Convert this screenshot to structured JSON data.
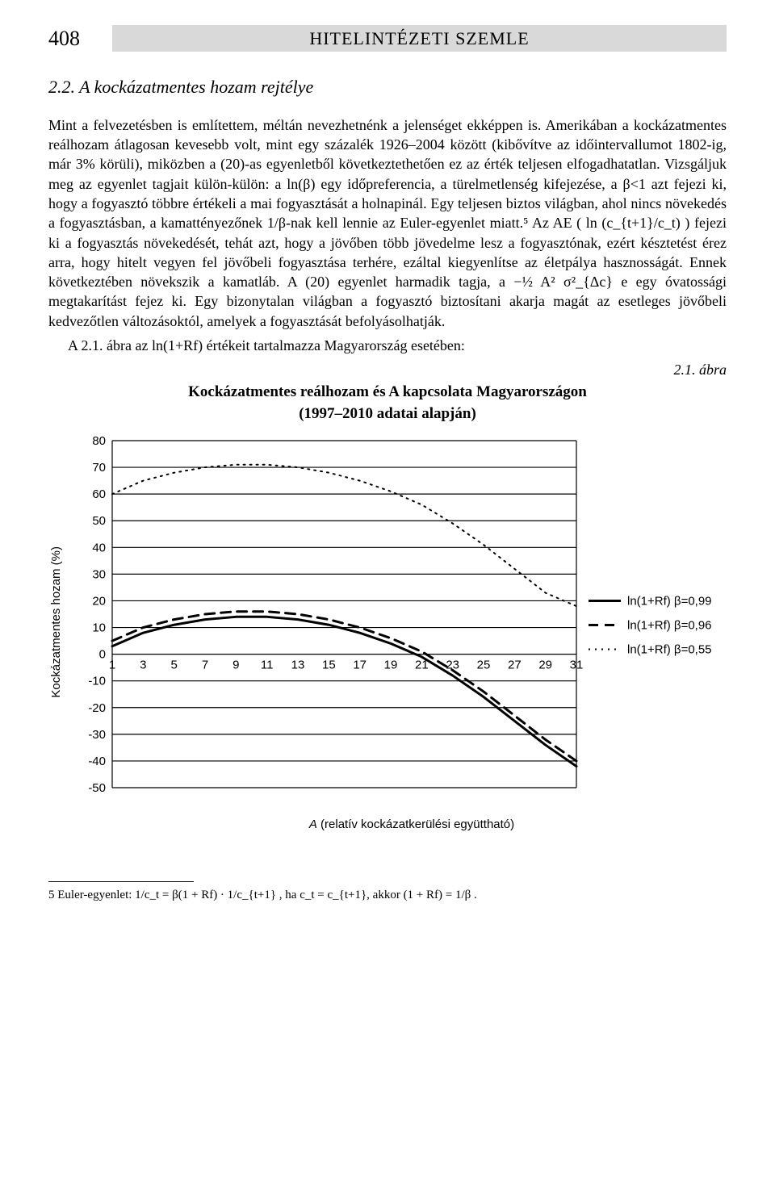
{
  "page_number": "408",
  "journal_title": "HITELINTÉZETI SZEMLE",
  "section_heading": "2.2. A kockázatmentes hozam rejtélye",
  "paragraph": "Mint a felvezetésben is említettem, méltán nevezhetnénk a jelenséget ekképpen is. Amerikában a kockázatmentes reálhozam átlagosan kevesebb volt, mint egy százalék 1926–2004 között (kibővítve az időintervallumot 1802-ig, már 3% körüli), miközben a (20)-as egyenletből következtethetően ez az érték teljesen elfogadhatatlan. Vizsgáljuk meg az egyenlet tagjait külön-külön: a ln(β) egy időpreferencia, a türelmetlenség kifejezése, a β<1 azt fejezi ki, hogy a fogyasztó többre értékeli a mai fogyasztását a holnapinál. Egy teljesen biztos világban, ahol nincs növekedés a fogyasztásban, a kamattényezőnek 1/β-nak kell lennie az Euler-egyenlet miatt.⁵ Az AE ( ln (c_{t+1}/c_t) ) fejezi ki a fogyasztás növekedését, tehát azt, hogy a jövőben több jövedelme lesz a fogyasztónak, ezért késztetést érez arra, hogy hitelt vegyen fel jövőbeli fogyasztása terhére, ezáltal kiegyenlítse az életpálya hasznosságát. Ennek következtében növekszik a kamatláb. A (20) egyenlet harmadik tagja, a −½ A² σ²_{Δc} e egy óvatossági megtakarítást fejez ki. Egy bizonytalan világban a fogyasztó biztosítani akarja magát az esetleges jövőbeli kedvezőtlen változásoktól, amelyek a fogyasztását befolyásolhatják.",
  "indent_line": "A 2.1. ábra az ln(1+Rf) értékeit tartalmazza Magyarország esetében:",
  "fig_label": "2.1. ábra",
  "fig_title": "Kockázatmentes reálhozam és A kapcsolata Magyarországon",
  "fig_subtitle": "(1997–2010 adatai alapján)",
  "y_axis_label": "Kockázatmentes hozam (%)",
  "x_axis_label_italic": "A",
  "x_axis_label_rest": " (relatív kockázatkerülési együttható)",
  "footnote": "5 Euler-egyenlet:  1/c_t = β(1 + Rf) · 1/c_{t+1} , ha c_t = c_{t+1}, akkor (1 + Rf) = 1/β .",
  "chart": {
    "type": "line",
    "background_color": "#ffffff",
    "grid_color": "#000000",
    "text_color": "#000000",
    "font_family": "Arial, Helvetica, sans-serif",
    "tick_fontsize": 15,
    "axis_line_width": 1.2,
    "grid_line_width": 1.2,
    "x_ticks": [
      1,
      3,
      5,
      7,
      9,
      11,
      13,
      15,
      17,
      19,
      21,
      23,
      25,
      27,
      29,
      31
    ],
    "y_ticks": [
      -50,
      -40,
      -30,
      -20,
      -10,
      0,
      10,
      20,
      30,
      40,
      50,
      60,
      70,
      80
    ],
    "xlim": [
      1,
      31
    ],
    "ylim": [
      -50,
      80
    ],
    "legend": [
      {
        "label": "ln(1+Rf) β=0,99",
        "dash": "solid",
        "color": "#000000",
        "width": 3
      },
      {
        "label": "ln(1+Rf) β=0,96",
        "dash": "dashed",
        "color": "#000000",
        "width": 3
      },
      {
        "label": "ln(1+Rf) β=0,55",
        "dash": "dotted",
        "color": "#000000",
        "width": 2
      }
    ],
    "series": [
      {
        "name": "beta_0_99",
        "color": "#000000",
        "width": 3,
        "dash": "solid",
        "x": [
          1,
          3,
          5,
          7,
          9,
          11,
          13,
          15,
          17,
          19,
          21,
          23,
          25,
          27,
          29,
          31
        ],
        "y": [
          3,
          8,
          11,
          13,
          14,
          14,
          13,
          11,
          8,
          4,
          -1,
          -8,
          -16,
          -25,
          -34,
          -42
        ]
      },
      {
        "name": "beta_0_96",
        "color": "#000000",
        "width": 3,
        "dash": "dashed",
        "x": [
          1,
          3,
          5,
          7,
          9,
          11,
          13,
          15,
          17,
          19,
          21,
          23,
          25,
          27,
          29,
          31
        ],
        "y": [
          5,
          10,
          13,
          15,
          16,
          16,
          15,
          13,
          10,
          6,
          1,
          -6,
          -14,
          -23,
          -32,
          -40
        ]
      },
      {
        "name": "beta_0_55",
        "color": "#000000",
        "width": 2,
        "dash": "dotted",
        "x": [
          1,
          3,
          5,
          7,
          9,
          11,
          13,
          15,
          17,
          19,
          21,
          23,
          25,
          27,
          29,
          31
        ],
        "y": [
          60,
          65,
          68,
          70,
          71,
          71,
          70,
          68,
          65,
          61,
          56,
          49,
          41,
          32,
          23,
          18
        ]
      }
    ]
  }
}
